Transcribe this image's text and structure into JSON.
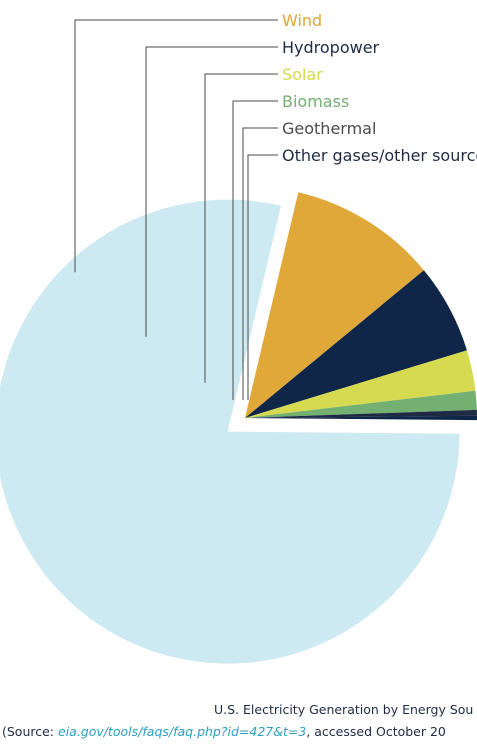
{
  "chart_data": {
    "type": "pie",
    "caption": "U.S. Electricity Generation by Energy Sou",
    "series": [
      {
        "name": "",
        "value": 77.6,
        "color": "#cdeaf3",
        "exploded": true
      },
      {
        "name": "Wind",
        "value": 10.2,
        "color": "#dfa838"
      },
      {
        "name": "Hydropower",
        "value": 6.2,
        "color": "#0f2648"
      },
      {
        "name": "Solar",
        "value": 2.8,
        "color": "#d5da50"
      },
      {
        "name": "Biomass",
        "value": 1.3,
        "color": "#74b071"
      },
      {
        "name": "Geothermal",
        "value": 0.4,
        "color": "#1f2a44"
      },
      {
        "name": "Other gases/other source",
        "value": 0.3,
        "color": "#0f2648"
      }
    ],
    "legend": [
      {
        "label": "Wind",
        "color": "#dfa838"
      },
      {
        "label": "Hydropower",
        "color": "#1f2a44"
      },
      {
        "label": "Solar",
        "color": "#d5da50"
      },
      {
        "label": "Biomass",
        "color": "#74b071"
      },
      {
        "label": "Geothermal",
        "color": "#4a4a4a"
      },
      {
        "label": "Other gases/other source",
        "color": "#1f2a44"
      }
    ]
  },
  "caption": {
    "title": "U.S. Electricity Generation by Energy Sou",
    "source_prefix": "(Source: ",
    "source_link": "eia.gov/tools/faqs/faq.php?id=427&t=3",
    "source_suffix": ", accessed October 20"
  }
}
